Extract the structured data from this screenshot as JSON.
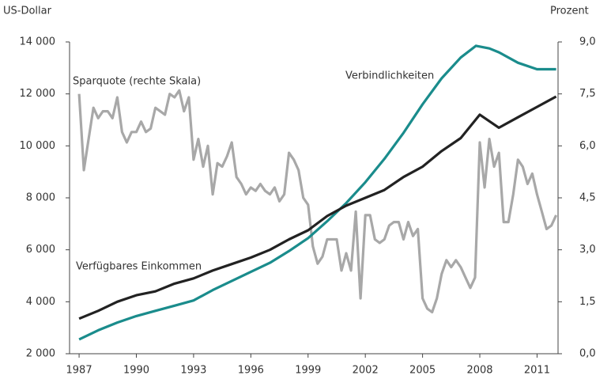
{
  "chart_data": {
    "type": "line",
    "y_label": "US-Dollar",
    "y2_label": "Prozent",
    "annotations": [
      "Sparquote (rechte Skala)",
      "Verbindlichkeiten",
      "Verfügbares Einkommen"
    ],
    "xlim": [
      1986.5,
      2012.1
    ],
    "xticks": [
      1987,
      1990,
      1993,
      1996,
      1999,
      2002,
      2005,
      2008,
      2011
    ],
    "ylim": [
      2000,
      14000
    ],
    "yticks": [
      {
        "value": 2000,
        "label": "2 000"
      },
      {
        "value": 4000,
        "label": "4 000"
      },
      {
        "value": 6000,
        "label": "6 000"
      },
      {
        "value": 8000,
        "label": "8 000"
      },
      {
        "value": 10000,
        "label": "10 000"
      },
      {
        "value": 12000,
        "label": "12 000"
      },
      {
        "value": 14000,
        "label": "14 000"
      }
    ],
    "y2lim": [
      0,
      9
    ],
    "y2ticks": [
      {
        "value": 0,
        "label": "0,0"
      },
      {
        "value": 1.5,
        "label": "1,5"
      },
      {
        "value": 3,
        "label": "3,0"
      },
      {
        "value": 4.5,
        "label": "4,5"
      },
      {
        "value": 6,
        "label": "6,0"
      },
      {
        "value": 7.5,
        "label": "7,5"
      },
      {
        "value": 9,
        "label": "9,0"
      }
    ],
    "grid": false,
    "series": [
      {
        "name": "Sparquote (rechte Skala)",
        "color": "#a8a8a8",
        "axis": "y2",
        "x": [
          1987,
          1987.25,
          1987.5,
          1987.75,
          1988,
          1988.25,
          1988.5,
          1988.75,
          1989,
          1989.25,
          1989.5,
          1989.75,
          1990,
          1990.25,
          1990.5,
          1990.75,
          1991,
          1991.25,
          1991.5,
          1991.75,
          1992,
          1992.25,
          1992.5,
          1992.75,
          1993,
          1993.25,
          1993.5,
          1993.75,
          1994,
          1994.25,
          1994.5,
          1994.75,
          1995,
          1995.25,
          1995.5,
          1995.75,
          1996,
          1996.25,
          1996.5,
          1996.75,
          1997,
          1997.25,
          1997.5,
          1997.75,
          1998,
          1998.25,
          1998.5,
          1998.75,
          1999,
          1999.25,
          1999.5,
          1999.75,
          2000,
          2000.25,
          2000.5,
          2000.75,
          2001,
          2001.25,
          2001.5,
          2001.75,
          2002,
          2002.25,
          2002.5,
          2002.75,
          2003,
          2003.25,
          2003.5,
          2003.75,
          2004,
          2004.25,
          2004.5,
          2004.75,
          2005,
          2005.25,
          2005.5,
          2005.75,
          2006,
          2006.25,
          2006.5,
          2006.75,
          2007,
          2007.25,
          2007.5,
          2007.75,
          2008,
          2008.25,
          2008.5,
          2008.75,
          2009,
          2009.25,
          2009.5,
          2009.75,
          2010,
          2010.25,
          2010.5,
          2010.75,
          2011,
          2011.25,
          2011.5,
          2011.75,
          2012
        ],
        "values": [
          7.5,
          5.3,
          6.2,
          7.1,
          6.8,
          7.0,
          7.0,
          6.8,
          7.4,
          6.4,
          6.1,
          6.4,
          6.4,
          6.7,
          6.4,
          6.5,
          7.1,
          7.0,
          6.9,
          7.5,
          7.4,
          7.6,
          7.0,
          7.4,
          5.6,
          6.2,
          5.4,
          6.0,
          4.6,
          5.5,
          5.4,
          5.7,
          6.1,
          5.1,
          4.9,
          4.6,
          4.8,
          4.7,
          4.9,
          4.7,
          4.6,
          4.8,
          4.4,
          4.6,
          5.8,
          5.6,
          5.3,
          4.5,
          4.3,
          3.1,
          2.6,
          2.8,
          3.3,
          3.3,
          3.3,
          2.4,
          2.9,
          2.4,
          4.1,
          1.6,
          4.0,
          4.0,
          3.3,
          3.2,
          3.3,
          3.7,
          3.8,
          3.8,
          3.3,
          3.8,
          3.4,
          3.6,
          1.6,
          1.3,
          1.2,
          1.6,
          2.3,
          2.7,
          2.5,
          2.7,
          2.5,
          2.2,
          1.9,
          2.2,
          6.1,
          4.8,
          6.2,
          5.4,
          5.8,
          3.8,
          3.8,
          4.6,
          5.6,
          5.4,
          4.9,
          5.2,
          4.6,
          4.1,
          3.6,
          3.7,
          4.0
        ]
      },
      {
        "name": "Verbindlichkeiten",
        "color": "#1a8c8c",
        "x": [
          1987,
          1988,
          1989,
          1990,
          1991,
          1992,
          1993,
          1994,
          1995,
          1996,
          1997,
          1998,
          1999,
          2000,
          2001,
          2002,
          2003,
          2004,
          2005,
          2006,
          2007,
          2007.8,
          2008.5,
          2009,
          2010,
          2011,
          2012
        ],
        "values": [
          2550,
          2900,
          3200,
          3450,
          3650,
          3850,
          4050,
          4450,
          4800,
          5150,
          5500,
          5950,
          6450,
          7100,
          7800,
          8600,
          9500,
          10500,
          11600,
          12600,
          13400,
          13850,
          13750,
          13600,
          13200,
          12950,
          12950
        ]
      },
      {
        "name": "Verfügbares Einkommen",
        "color": "#222222",
        "x": [
          1987,
          1988,
          1989,
          1990,
          1991,
          1992,
          1993,
          1994,
          1995,
          1996,
          1997,
          1998,
          1999,
          2000,
          2001,
          2002,
          2003,
          2004,
          2005,
          2006,
          2007,
          2008,
          2009,
          2010,
          2011,
          2012
        ],
        "values": [
          3350,
          3650,
          4000,
          4250,
          4400,
          4700,
          4900,
          5200,
          5450,
          5700,
          6000,
          6400,
          6750,
          7300,
          7700,
          8000,
          8300,
          8800,
          9200,
          9800,
          10300,
          11200,
          10700,
          11100,
          11500,
          11900
        ]
      }
    ]
  }
}
